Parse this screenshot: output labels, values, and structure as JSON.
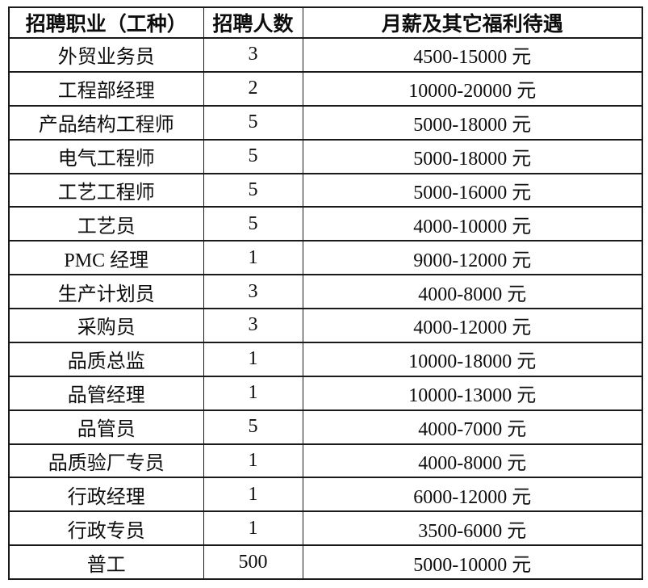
{
  "table": {
    "headers": {
      "job": "招聘职业（工种）",
      "count": "招聘人数",
      "salary": "月薪及其它福利待遇"
    },
    "rows": [
      {
        "job": "外贸业务员",
        "count": "3",
        "salary": "4500-15000 元"
      },
      {
        "job": "工程部经理",
        "count": "2",
        "salary": "10000-20000 元"
      },
      {
        "job": "产品结构工程师",
        "count": "5",
        "salary": "5000-18000 元"
      },
      {
        "job": "电气工程师",
        "count": "5",
        "salary": "5000-18000 元"
      },
      {
        "job": "工艺工程师",
        "count": "5",
        "salary": "5000-16000 元"
      },
      {
        "job": "工艺员",
        "count": "5",
        "salary": "4000-10000 元"
      },
      {
        "job": "PMC 经理",
        "count": "1",
        "salary": "9000-12000 元"
      },
      {
        "job": "生产计划员",
        "count": "3",
        "salary": "4000-8000 元"
      },
      {
        "job": "采购员",
        "count": "3",
        "salary": "4000-12000 元"
      },
      {
        "job": "品质总监",
        "count": "1",
        "salary": "10000-18000 元"
      },
      {
        "job": "品管经理",
        "count": "1",
        "salary": "10000-13000 元"
      },
      {
        "job": "品管员",
        "count": "5",
        "salary": "4000-7000 元"
      },
      {
        "job": "品质验厂专员",
        "count": "1",
        "salary": "4000-8000 元"
      },
      {
        "job": "行政经理",
        "count": "1",
        "salary": "6000-12000 元"
      },
      {
        "job": "行政专员",
        "count": "1",
        "salary": "3500-6000 元"
      },
      {
        "job": "普工",
        "count": "500",
        "salary": "5000-10000 元"
      }
    ],
    "colors": {
      "border": "#1a1a1a",
      "text": "#0d0d0d",
      "background": "#ffffff"
    }
  }
}
